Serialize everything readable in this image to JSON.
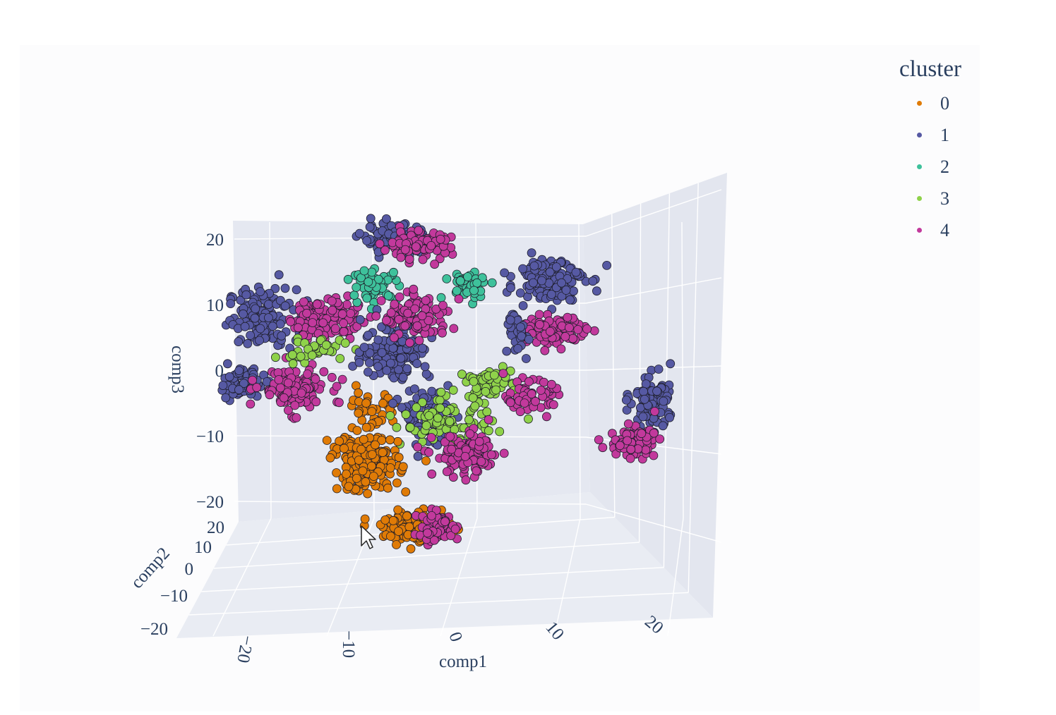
{
  "chart_data": {
    "type": "scatter",
    "title": "",
    "axes": {
      "x": {
        "label": "comp1",
        "ticks": [
          "−20",
          "−10",
          "0",
          "10",
          "20"
        ],
        "range": [
          -25,
          25
        ]
      },
      "y": {
        "label": "comp2",
        "ticks": [
          "−20",
          "−10",
          "0",
          "10",
          "20"
        ],
        "range": [
          -25,
          25
        ]
      },
      "z": {
        "label": "comp3",
        "ticks": [
          "−20",
          "−10",
          "0",
          "10",
          "20"
        ],
        "range": [
          -25,
          25
        ]
      }
    },
    "grid": true,
    "legend": {
      "title": "cluster",
      "placement": "top-right"
    },
    "series": [
      {
        "name": "0",
        "color": "#e07b06"
      },
      {
        "name": "1",
        "color": "#5659a3"
      },
      {
        "name": "2",
        "color": "#3ec19b"
      },
      {
        "name": "3",
        "color": "#8fd24a"
      },
      {
        "name": "4",
        "color": "#c2399c"
      }
    ],
    "point_clusters": [
      {
        "series": "1",
        "x": -18,
        "z": 8,
        "spread": [
          3,
          4
        ],
        "count": 140
      },
      {
        "series": "4",
        "x": -12,
        "z": 8,
        "spread": [
          3,
          3
        ],
        "count": 130
      },
      {
        "series": "1",
        "x": -20,
        "z": -2,
        "spread": [
          2,
          2
        ],
        "count": 70
      },
      {
        "series": "4",
        "x": -15,
        "z": -3,
        "spread": [
          3,
          3
        ],
        "count": 120
      },
      {
        "series": "3",
        "x": -13,
        "z": 3,
        "spread": [
          3,
          1.5
        ],
        "count": 45
      },
      {
        "series": "0",
        "x": -7,
        "z": -6,
        "spread": [
          2,
          3
        ],
        "count": 40
      },
      {
        "series": "1",
        "x": -5,
        "z": 20,
        "spread": [
          3,
          2
        ],
        "count": 100
      },
      {
        "series": "4",
        "x": -3,
        "z": 19,
        "spread": [
          3,
          2
        ],
        "count": 90
      },
      {
        "series": "2",
        "x": -7,
        "z": 13,
        "spread": [
          2,
          2
        ],
        "count": 60
      },
      {
        "series": "2",
        "x": 2,
        "z": 13,
        "spread": [
          2,
          2
        ],
        "count": 45
      },
      {
        "series": "1",
        "x": -5,
        "z": 3,
        "spread": [
          3,
          4
        ],
        "count": 140
      },
      {
        "series": "4",
        "x": -3,
        "z": 8,
        "spread": [
          3,
          3
        ],
        "count": 110
      },
      {
        "series": "1",
        "x": -2,
        "z": -7,
        "spread": [
          2,
          4
        ],
        "count": 90
      },
      {
        "series": "3",
        "x": 0,
        "z": -8,
        "spread": [
          4,
          3
        ],
        "count": 90
      },
      {
        "series": "4",
        "x": 2,
        "z": -13,
        "spread": [
          3,
          3
        ],
        "count": 110
      },
      {
        "series": "0",
        "x": -8,
        "z": -14,
        "spread": [
          3,
          4
        ],
        "count": 180
      },
      {
        "series": "0",
        "x": -3,
        "z": -24,
        "spread": [
          3,
          2
        ],
        "count": 160
      },
      {
        "series": "4",
        "x": -1,
        "z": -24,
        "spread": [
          2,
          2
        ],
        "count": 60
      },
      {
        "series": "3",
        "x": 4,
        "z": -2,
        "spread": [
          2,
          2
        ],
        "count": 60
      },
      {
        "series": "1",
        "x": 10,
        "z": 14,
        "spread": [
          3,
          3
        ],
        "count": 150
      },
      {
        "series": "4",
        "x": 10,
        "z": 6,
        "spread": [
          3,
          2
        ],
        "count": 120
      },
      {
        "series": "1",
        "x": 7,
        "z": 6,
        "spread": [
          1,
          4
        ],
        "count": 40
      },
      {
        "series": "4",
        "x": 8,
        "z": -4,
        "spread": [
          2,
          2
        ],
        "count": 70
      },
      {
        "series": "1",
        "x": 20,
        "z": -5,
        "spread": [
          2,
          4
        ],
        "count": 110
      },
      {
        "series": "4",
        "x": 18,
        "z": -11,
        "spread": [
          2,
          2
        ],
        "count": 100
      }
    ]
  },
  "legend": {
    "title": "cluster",
    "items": [
      {
        "label": "0",
        "color": "#e07b06"
      },
      {
        "label": "1",
        "color": "#5659a3"
      },
      {
        "label": "2",
        "color": "#3ec19b"
      },
      {
        "label": "3",
        "color": "#8fd24a"
      },
      {
        "label": "4",
        "color": "#c2399c"
      }
    ]
  },
  "icons": {
    "cursor": "mouse-pointer-icon"
  }
}
